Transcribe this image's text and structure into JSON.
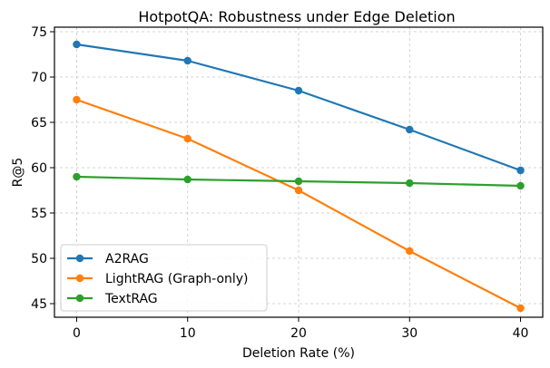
{
  "chart_data": {
    "type": "line",
    "title": "HotpotQA: Robustness under Edge Deletion",
    "xlabel": "Deletion Rate (%)",
    "ylabel": "R@5",
    "x": [
      0,
      10,
      20,
      30,
      40
    ],
    "xlim": [
      -2,
      42
    ],
    "ylim": [
      43.5,
      75.5
    ],
    "xticks": [
      0,
      10,
      20,
      30,
      40
    ],
    "yticks": [
      45,
      50,
      55,
      60,
      65,
      70,
      75
    ],
    "grid": true,
    "legend_position": "lower-left",
    "series": [
      {
        "name": "A2RAG",
        "color": "#1f77b4",
        "values": [
          73.6,
          71.8,
          68.5,
          64.2,
          59.7
        ]
      },
      {
        "name": "LightRAG (Graph-only)",
        "color": "#ff7f0e",
        "values": [
          67.5,
          63.2,
          57.5,
          50.8,
          44.5
        ]
      },
      {
        "name": "TextRAG",
        "color": "#2ca02c",
        "values": [
          59.0,
          58.7,
          58.5,
          58.3,
          58.0
        ]
      }
    ]
  }
}
